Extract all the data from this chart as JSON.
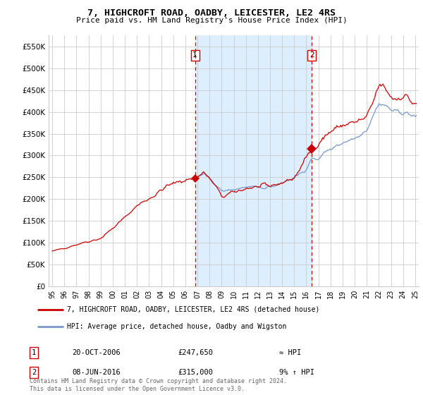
{
  "title": "7, HIGHCROFT ROAD, OADBY, LEICESTER, LE2 4RS",
  "subtitle": "Price paid vs. HM Land Registry's House Price Index (HPI)",
  "yticks": [
    0,
    50000,
    100000,
    150000,
    200000,
    250000,
    300000,
    350000,
    400000,
    450000,
    500000,
    550000
  ],
  "ylim": [
    0,
    575000
  ],
  "xlim_left": 1994.7,
  "xlim_right": 2025.3,
  "sale_dates": [
    2006.8,
    2016.45
  ],
  "sale_prices": [
    247650,
    315000
  ],
  "sale_labels": [
    "1",
    "2"
  ],
  "legend_line1": "7, HIGHCROFT ROAD, OADBY, LEICESTER, LE2 4RS (detached house)",
  "legend_line2": "HPI: Average price, detached house, Oadby and Wigston",
  "table_rows": [
    [
      "1",
      "20-OCT-2006",
      "£247,650",
      "≈ HPI"
    ],
    [
      "2",
      "08-JUN-2016",
      "£315,000",
      "9% ↑ HPI"
    ]
  ],
  "footnote": "Contains HM Land Registry data © Crown copyright and database right 2024.\nThis data is licensed under the Open Government Licence v3.0.",
  "line_color_red": "#cc0000",
  "line_color_blue": "#7799cc",
  "shade_color": "#ddeeff",
  "background_color": "#ffffff",
  "grid_color": "#cccccc",
  "vline_color": "#cc0000",
  "xtick_years": [
    1995,
    1996,
    1997,
    1998,
    1999,
    2000,
    2001,
    2002,
    2003,
    2004,
    2005,
    2006,
    2007,
    2008,
    2009,
    2010,
    2011,
    2012,
    2013,
    2014,
    2015,
    2016,
    2017,
    2018,
    2019,
    2020,
    2021,
    2022,
    2023,
    2024,
    2025
  ]
}
